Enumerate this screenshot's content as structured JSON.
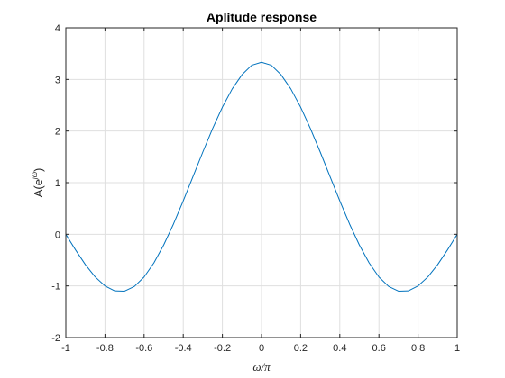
{
  "chart_data": {
    "type": "line",
    "title": "Aplitude response",
    "xlabel": "ω/π",
    "ylabel_main": "A(e",
    "ylabel_sup": "jω",
    "ylabel_close": ")",
    "xlim": [
      -1,
      1
    ],
    "ylim": [
      -2,
      4
    ],
    "xticks": [
      -1,
      -0.8,
      -0.6,
      -0.4,
      -0.2,
      0,
      0.2,
      0.4,
      0.6,
      0.8,
      1
    ],
    "xtick_labels": [
      "-1",
      "-0.8",
      "-0.6",
      "-0.4",
      "-0.2",
      "0",
      "0.2",
      "0.4",
      "0.6",
      "0.8",
      "1"
    ],
    "yticks": [
      -2,
      -1,
      0,
      1,
      2,
      3,
      4
    ],
    "ytick_labels": [
      "-2",
      "-1",
      "0",
      "1",
      "2",
      "3",
      "4"
    ],
    "grid": true,
    "series": [
      {
        "color": "#0072BD",
        "x": [
          -1,
          -0.95,
          -0.9,
          -0.85,
          -0.8,
          -0.75,
          -0.7,
          -0.65,
          -0.6,
          -0.55,
          -0.5,
          -0.45,
          -0.4,
          -0.35,
          -0.3,
          -0.25,
          -0.2,
          -0.15,
          -0.1,
          -0.05,
          0,
          0.05,
          0.1,
          0.15,
          0.2,
          0.25,
          0.3,
          0.35,
          0.4,
          0.45,
          0.5,
          0.55,
          0.6,
          0.65,
          0.7,
          0.75,
          0.8,
          0.85,
          0.9,
          0.95,
          1
        ],
        "y": [
          0,
          -0.305,
          -0.588,
          -0.826,
          -1.0,
          -1.096,
          -1.101,
          -1.011,
          -0.827,
          -0.555,
          -0.208,
          0.198,
          0.647,
          1.119,
          1.593,
          2.048,
          2.462,
          2.815,
          3.09,
          3.275,
          3.333,
          3.275,
          3.09,
          2.815,
          2.462,
          2.048,
          1.593,
          1.119,
          0.647,
          0.198,
          -0.208,
          -0.555,
          -0.827,
          -1.011,
          -1.101,
          -1.096,
          -1.0,
          -0.826,
          -0.588,
          -0.305,
          0
        ]
      }
    ]
  }
}
